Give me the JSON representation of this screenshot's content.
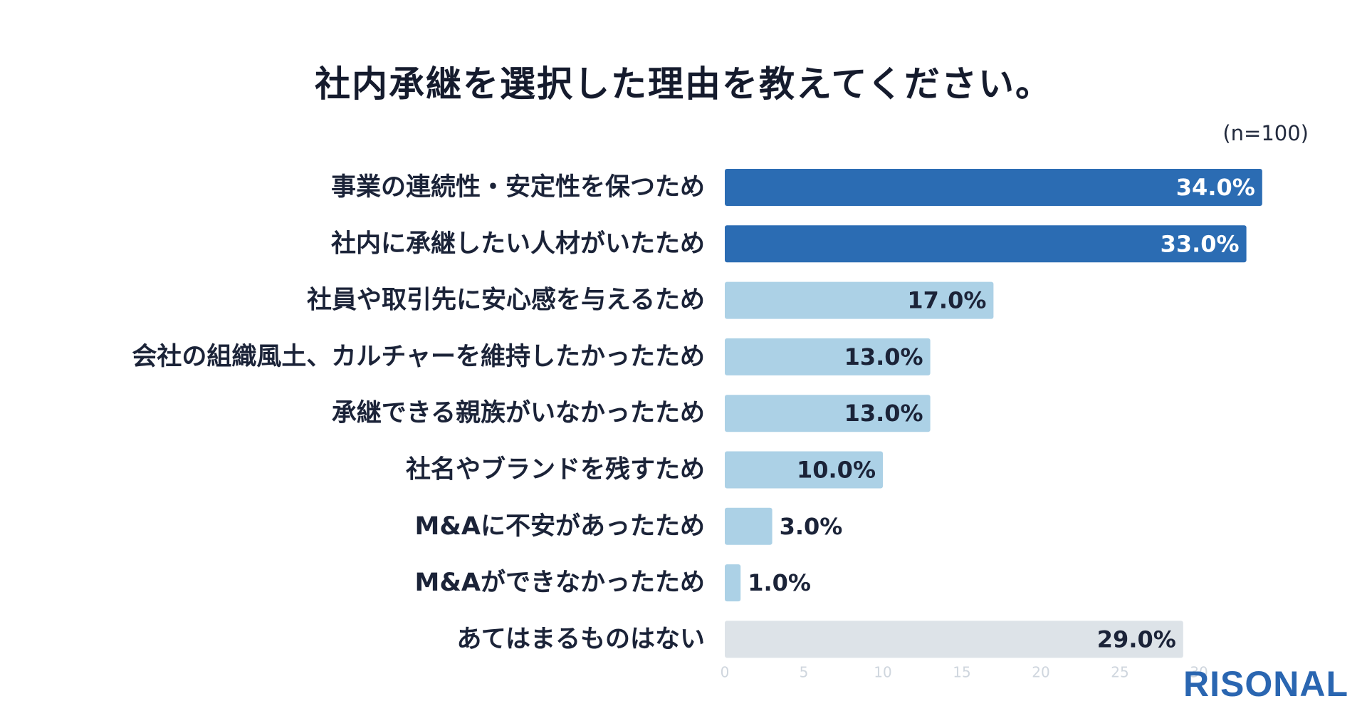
{
  "chart_data": {
    "type": "bar",
    "orientation": "horizontal",
    "title": "社内承継を選択した理由を教えてください。",
    "sample_note": "(n=100)",
    "categories": [
      "事業の連続性・安定性を保つため",
      "社内に承継したい人材がいたため",
      "社員や取引先に安心感を与えるため",
      "会社の組織風土、カルチャーを維持したかったため",
      "承継できる親族がいなかったため",
      "社名やブランドを残すため",
      "M&Aに不安があったため",
      "M&Aができなかったため",
      "あてはまるものはない"
    ],
    "values": [
      34.0,
      33.0,
      17.0,
      13.0,
      13.0,
      10.0,
      3.0,
      1.0,
      29.0
    ],
    "value_labels": [
      "34.0%",
      "33.0%",
      "17.0%",
      "13.0%",
      "13.0%",
      "10.0%",
      "3.0%",
      "1.0%",
      "29.0%"
    ],
    "bar_colors": [
      "#2b6cb3",
      "#2b6cb3",
      "#acd1e6",
      "#acd1e6",
      "#acd1e6",
      "#acd1e6",
      "#acd1e6",
      "#acd1e6",
      "#dde3e8"
    ],
    "xlim": [
      0,
      35
    ],
    "x_ticks": [
      0,
      5,
      10,
      15,
      20,
      25,
      30
    ],
    "grid": false,
    "legend": "none"
  },
  "brand": {
    "name": "RISONAL",
    "color": "#2a66b1"
  }
}
